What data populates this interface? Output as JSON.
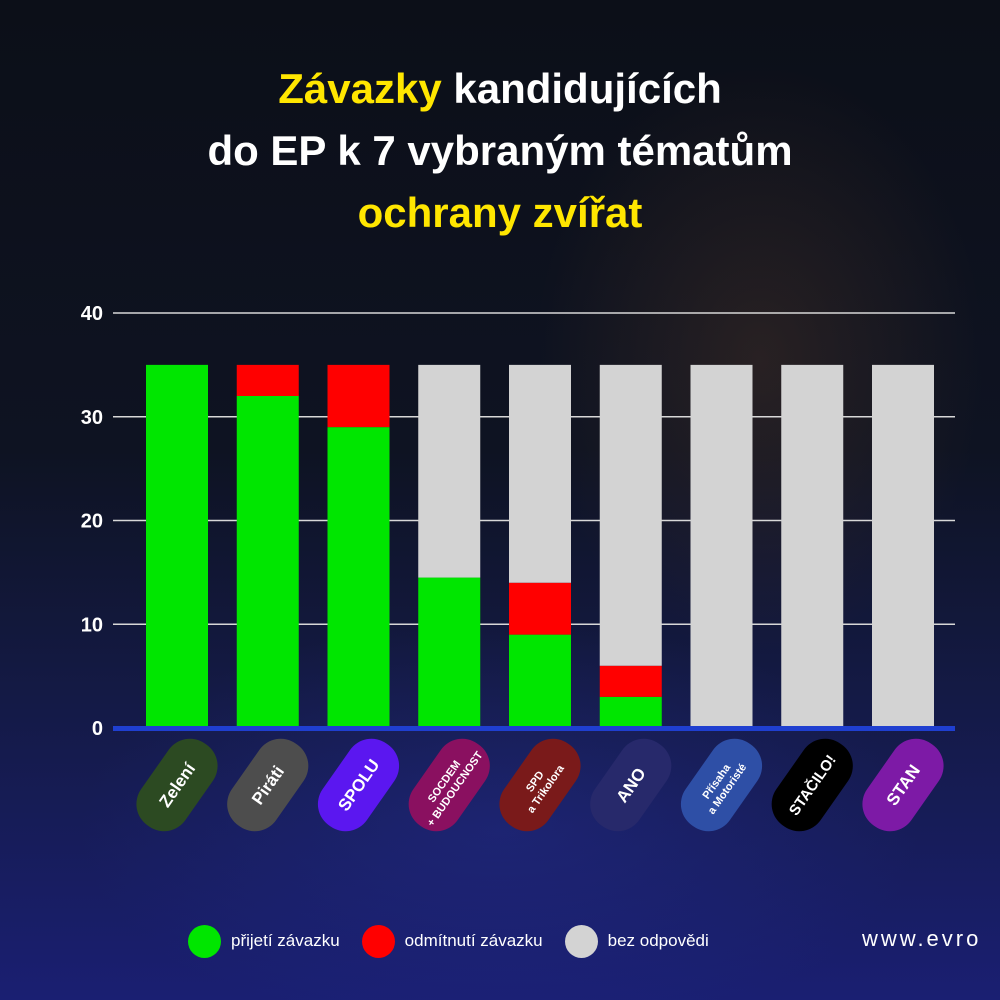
{
  "title": {
    "line1_highlight": "Závazky",
    "line1_rest": "kandidujících",
    "line2": "do EP k 7 vybraným tématům",
    "line3_highlight": "ochrany zvířat"
  },
  "colors": {
    "title_highlight": "#ffe600",
    "accept": "#00e600",
    "refuse": "#ff0000",
    "no_answer": "#d3d3d3",
    "baseline": "#1f3fd0"
  },
  "chart_data": {
    "type": "bar",
    "stacked": true,
    "categories": [
      "Zelení",
      "Piráti",
      "SPOLU",
      "SOCDEM + BUDOUCNOST",
      "SPD a Trikolora",
      "ANO",
      "Přísaha a Motoristé",
      "STAČILO!",
      "STAN"
    ],
    "category_label_lines": [
      [
        "Zelení"
      ],
      [
        "Piráti"
      ],
      [
        "SPOLU"
      ],
      [
        "SOCDEM",
        "+ BUDOUCNOST"
      ],
      [
        "SPD",
        "a Trikolora"
      ],
      [
        "ANO"
      ],
      [
        "Přísaha",
        "a Motoristé"
      ],
      [
        "STAČILO!"
      ],
      [
        "STAN"
      ]
    ],
    "category_colors": [
      "#2c4a22",
      "#4d4d4d",
      "#5b17f0",
      "#8a1060",
      "#7a1a1a",
      "#27296b",
      "#2e4fa6",
      "#000000",
      "#7d1aa6"
    ],
    "series": [
      {
        "name": "přijetí závazku",
        "color": "#00e600",
        "values": [
          35,
          32,
          29,
          14.5,
          9,
          3,
          0,
          0,
          0
        ]
      },
      {
        "name": "odmítnutí závazku",
        "color": "#ff0000",
        "values": [
          0,
          3,
          6,
          0,
          5,
          3,
          0,
          0,
          0
        ]
      },
      {
        "name": "bez odpovědi",
        "color": "#d3d3d3",
        "values": [
          0,
          0,
          0,
          20.5,
          21,
          29,
          35,
          35,
          35
        ]
      }
    ],
    "yticks": [
      0,
      10,
      20,
      30,
      40
    ],
    "ylim": [
      0,
      40
    ],
    "grid": true
  },
  "footer": {
    "url": "www.evro"
  }
}
